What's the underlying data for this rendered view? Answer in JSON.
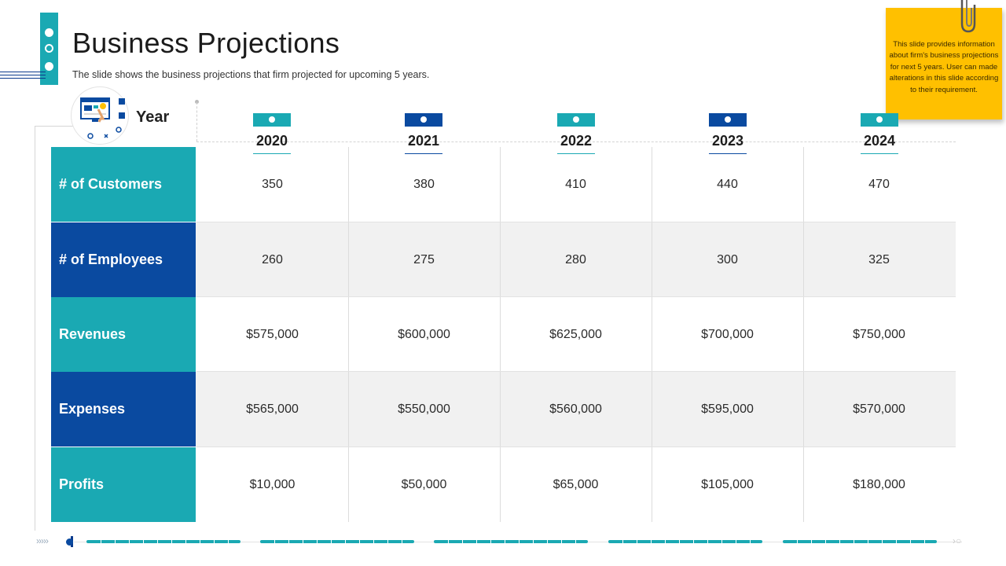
{
  "header": {
    "title": "Business Projections",
    "subtitle": "The slide shows the business projections that firm projected for upcoming 5 years."
  },
  "note": {
    "text": "This slide provides information about firm's business projections for next 5 years. User can made alterations in this slide according to their requirement."
  },
  "table": {
    "year_label": "Year",
    "years": [
      "2020",
      "2021",
      "2022",
      "2023",
      "2024"
    ],
    "rows": [
      {
        "label": "# of Customers",
        "values": [
          "350",
          "380",
          "410",
          "440",
          "470"
        ]
      },
      {
        "label": "# of Employees",
        "values": [
          "260",
          "275",
          "280",
          "300",
          "325"
        ]
      },
      {
        "label": "Revenues",
        "values": [
          "$575,000",
          "$600,000",
          "$625,000",
          "$700,000",
          "$750,000"
        ]
      },
      {
        "label": "Expenses",
        "values": [
          "$565,000",
          "$550,000",
          "$560,000",
          "$595,000",
          "$570,000"
        ]
      },
      {
        "label": "Profits",
        "values": [
          "$10,000",
          "$50,000",
          "$65,000",
          "$105,000",
          "$180,000"
        ]
      }
    ]
  },
  "colors": {
    "teal": "#1aa9b3",
    "blue": "#0a4aa0",
    "sticky": "#ffc000"
  }
}
